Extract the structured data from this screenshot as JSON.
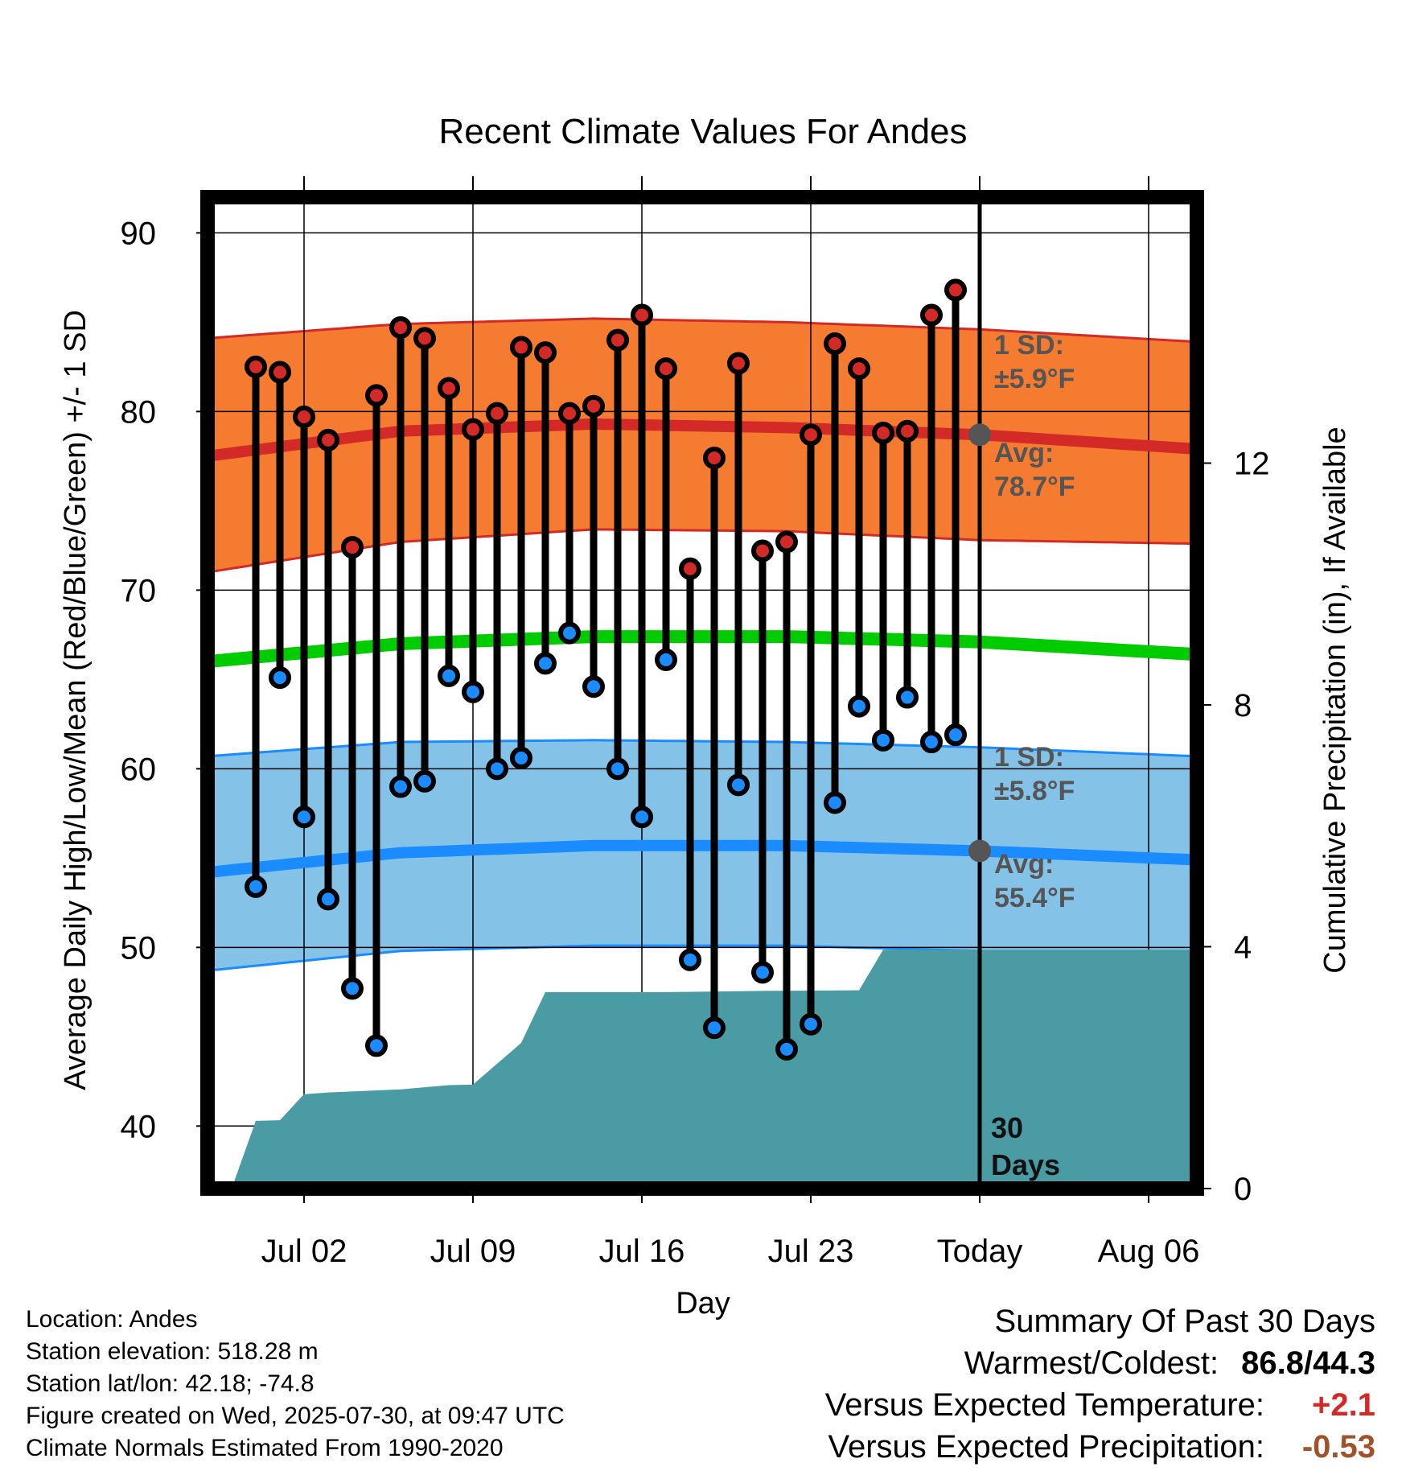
{
  "chart_data": {
    "type": "line",
    "title": "Recent Climate Values For Andes",
    "xlabel": "Day",
    "ylabel": "Average Daily High/Low/Mean (Red/Blue/Green) +/- 1 SD",
    "y2label": "Cumulative Precipitation (in), If Available",
    "ylim": [
      36.5,
      92
    ],
    "y_ticks": [
      "40",
      "50",
      "60",
      "70",
      "80",
      "90"
    ],
    "y2lim": [
      0,
      16.4
    ],
    "y2_ticks": [
      "0",
      "4",
      "8",
      "12"
    ],
    "x_start": "Jun 28",
    "x_end": "Aug 09",
    "x_tick_days": [
      4,
      11,
      18,
      25,
      32,
      39
    ],
    "x_tick_labels": [
      "Jul 02",
      "Jul 09",
      "Jul 16",
      "Jul 23",
      "Today",
      "Aug 06"
    ],
    "today_day": 32,
    "days_label": "30\nDays",
    "observed_days": [
      "Jun 30",
      "Jul 01",
      "Jul 02",
      "Jul 03",
      "Jul 04",
      "Jul 05",
      "Jul 06",
      "Jul 07",
      "Jul 08",
      "Jul 09",
      "Jul 10",
      "Jul 11",
      "Jul 12",
      "Jul 13",
      "Jul 14",
      "Jul 15",
      "Jul 16",
      "Jul 17",
      "Jul 18",
      "Jul 19",
      "Jul 20",
      "Jul 21",
      "Jul 22",
      "Jul 23",
      "Jul 24",
      "Jul 25",
      "Jul 26",
      "Jul 27",
      "Jul 28",
      "Jul 29",
      "Jul 30"
    ],
    "highs": [
      82.5,
      82.2,
      79.7,
      78.4,
      72.4,
      80.9,
      84.7,
      84.1,
      81.3,
      79.0,
      79.9,
      83.6,
      83.3,
      79.9,
      80.3,
      84.0,
      85.4,
      82.4,
      71.2,
      77.4,
      82.7,
      72.2,
      72.7,
      78.7,
      83.8,
      82.4,
      78.8,
      78.9,
      85.4,
      86.8,
      null
    ],
    "lows": [
      53.4,
      65.1,
      57.3,
      52.7,
      47.7,
      44.5,
      59.0,
      59.3,
      65.2,
      64.3,
      60.0,
      60.6,
      65.9,
      67.6,
      64.6,
      60.0,
      57.3,
      66.1,
      49.3,
      45.5,
      59.1,
      48.6,
      44.3,
      45.7,
      58.1,
      63.5,
      61.6,
      64.0,
      61.5,
      61.9,
      null
    ],
    "normal_high": {
      "days": [
        0,
        8,
        16,
        24,
        32,
        41
      ],
      "avg": [
        77.5,
        78.9,
        79.3,
        79.1,
        78.7,
        77.9
      ],
      "upper": [
        84.1,
        84.9,
        85.2,
        85.0,
        84.6,
        83.9
      ],
      "lower": [
        71.0,
        72.7,
        73.4,
        73.3,
        72.8,
        72.6
      ]
    },
    "normal_mean": {
      "days": [
        0,
        8,
        16,
        24,
        32,
        41
      ],
      "values": [
        66.0,
        67.0,
        67.4,
        67.4,
        67.1,
        66.4
      ]
    },
    "normal_low": {
      "days": [
        0,
        8,
        16,
        24,
        32,
        41
      ],
      "avg": [
        54.2,
        55.3,
        55.7,
        55.7,
        55.4,
        54.9
      ],
      "upper": [
        60.7,
        61.5,
        61.6,
        61.5,
        61.2,
        60.7
      ],
      "lower": [
        48.7,
        49.8,
        50.1,
        50.1,
        49.8,
        49.4
      ]
    },
    "precip_cumulative": {
      "days": [
        1,
        2,
        3,
        4,
        5,
        8,
        10,
        11,
        13,
        14,
        19,
        23,
        27,
        28,
        41
      ],
      "values": [
        0.0,
        1.12,
        1.13,
        1.56,
        1.59,
        1.64,
        1.71,
        1.72,
        2.41,
        3.25,
        3.25,
        3.27,
        3.28,
        3.95,
        3.95
      ]
    },
    "annotations": {
      "high_sd": "1 SD:\n±5.9°F",
      "high_avg": "Avg:\n78.7°F",
      "low_sd": "1 SD:\n±5.8°F",
      "low_avg": "Avg:\n55.4°F",
      "high_avg_value": 78.7,
      "low_avg_value": 55.4
    },
    "grid": true,
    "colors": {
      "high_band": "#F47B30",
      "high_line": "#D42A27",
      "low_band": "#85C2E8",
      "low_line": "#1A8CFF",
      "mean_line": "#00CC00",
      "precip_fill": "#4A9BA4",
      "high_point": "#D42A27",
      "low_point": "#1A8CFF",
      "avg_marker": "#555555"
    }
  },
  "footer": {
    "location": "Location: Andes",
    "elevation": "Station elevation: 518.28 m",
    "latlon": "Station lat/lon: 42.18; -74.8",
    "created": "Figure created on Wed, 2025-07-30, at 09:47 UTC",
    "normals": "Climate Normals Estimated From 1990-2020"
  },
  "summary": {
    "title": "Summary Of Past 30 Days",
    "warmest_label": "Warmest/Coldest:",
    "warmest_value": "86.8",
    "coldest_value": "44.3",
    "temp_label": "Versus Expected Temperature:",
    "temp_value": "+2.1",
    "temp_color": "#D42A27",
    "precip_label": "Versus Expected Precipitation:",
    "precip_value": "-0.53",
    "precip_color": "#A0522D"
  }
}
